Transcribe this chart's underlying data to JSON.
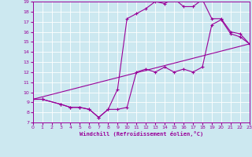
{
  "xlabel": "Windchill (Refroidissement éolien,°C)",
  "background_color": "#cce8f0",
  "grid_color": "#ffffff",
  "line_color": "#990099",
  "xmin": 0,
  "xmax": 23,
  "ymin": 7,
  "ymax": 19,
  "series1_x": [
    0,
    1,
    3,
    4,
    5,
    6,
    7,
    8,
    9,
    10,
    11,
    12,
    13,
    14,
    15,
    16,
    17,
    18,
    19,
    20,
    21,
    22,
    23
  ],
  "series1_y": [
    9.3,
    9.3,
    8.8,
    8.5,
    8.5,
    8.3,
    7.5,
    8.3,
    10.3,
    17.3,
    17.8,
    18.3,
    19.0,
    18.8,
    19.3,
    18.5,
    18.5,
    19.2,
    17.3,
    17.3,
    16.0,
    15.8,
    14.8
  ],
  "series2_x": [
    0,
    1,
    3,
    4,
    5,
    6,
    7,
    8,
    9,
    10,
    11,
    12,
    13,
    14,
    15,
    16,
    17,
    18,
    19,
    20,
    21,
    22,
    23
  ],
  "series2_y": [
    9.3,
    9.3,
    8.8,
    8.5,
    8.5,
    8.3,
    7.5,
    8.3,
    8.3,
    8.5,
    12.0,
    12.3,
    12.0,
    12.5,
    12.0,
    12.3,
    12.0,
    12.5,
    16.7,
    17.2,
    15.8,
    15.5,
    14.8
  ],
  "series3_x": [
    0,
    23
  ],
  "series3_y": [
    9.3,
    14.8
  ]
}
